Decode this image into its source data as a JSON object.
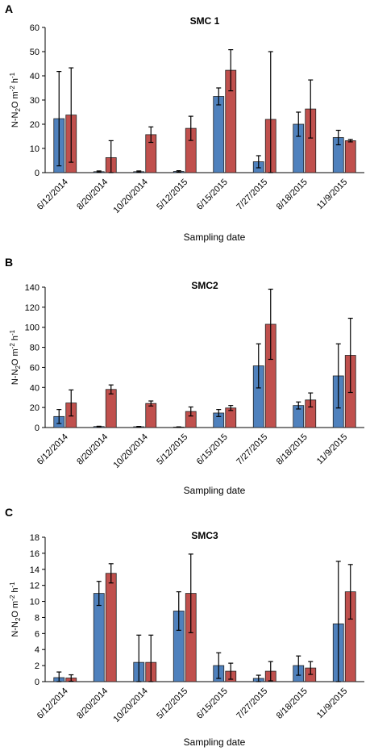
{
  "colors": {
    "series1": "#4F81BD",
    "series2": "#C0504D",
    "gridline": "#BFBFBF",
    "axis": "#000000"
  },
  "chart_data": [
    {
      "panel_letter": "A",
      "type": "bar",
      "title": "SMC 1",
      "ylabel": "N-N2O m-2 h-1",
      "xlabel": "Sampling date",
      "categories": [
        "6/12/2014",
        "8/20/2014",
        "10/20/2014",
        "5/12/2015",
        "6/15/2015",
        "7/27/2015",
        "8/18/2015",
        "11/9/2015"
      ],
      "ylim": [
        0,
        60
      ],
      "yticks": [
        0,
        10,
        20,
        30,
        40,
        50,
        60
      ],
      "grid": false,
      "series": [
        {
          "values": [
            22.3,
            0.4,
            0.4,
            0.5,
            31.5,
            4.5,
            20.0,
            14.5
          ],
          "errors": [
            19.5,
            0.3,
            0.3,
            0.3,
            3.5,
            2.5,
            5.0,
            3.0
          ]
        },
        {
          "values": [
            23.8,
            6.2,
            15.7,
            18.3,
            42.3,
            22.0,
            26.3,
            13.2
          ],
          "errors": [
            19.5,
            7.0,
            3.2,
            5.0,
            8.5,
            28.0,
            12.0,
            0.5
          ]
        }
      ]
    },
    {
      "panel_letter": "B",
      "type": "bar",
      "title": "SMC2",
      "ylabel": "N-N2O m-2 h-1",
      "xlabel": "Sampling date",
      "categories": [
        "6/12/2014",
        "8/20/2014",
        "10/20/2014",
        "5/12/2015",
        "6/15/2015",
        "7/27/2015",
        "8/18/2015",
        "11/9/2015"
      ],
      "ylim": [
        0,
        140
      ],
      "yticks": [
        0,
        20,
        40,
        60,
        80,
        100,
        120,
        140
      ],
      "grid": false,
      "series": [
        {
          "values": [
            11.0,
            1.0,
            0.8,
            0.5,
            14.5,
            61.5,
            22.0,
            51.5
          ],
          "errors": [
            7.0,
            0.3,
            0.3,
            0.2,
            3.5,
            22.0,
            3.5,
            32.0
          ]
        },
        {
          "values": [
            24.5,
            38.0,
            24.0,
            16.0,
            19.5,
            103.0,
            27.5,
            72.0
          ],
          "errors": [
            13.0,
            4.5,
            2.5,
            4.5,
            2.5,
            35.0,
            7.0,
            37.0
          ]
        }
      ]
    },
    {
      "panel_letter": "C",
      "type": "bar",
      "title": "SMC3",
      "ylabel": "N-N2O m-2 h-1",
      "xlabel": "Sampling date",
      "categories": [
        "6/12/2014",
        "8/20/2014",
        "10/20/2014",
        "5/12/2015",
        "6/15/2015",
        "7/27/2015",
        "8/18/2015",
        "11/9/2015"
      ],
      "ylim": [
        0,
        18
      ],
      "yticks": [
        0,
        2,
        4,
        6,
        8,
        10,
        12,
        14,
        16,
        18
      ],
      "grid": false,
      "series": [
        {
          "values": [
            0.5,
            11.0,
            2.4,
            8.8,
            2.0,
            0.4,
            2.0,
            7.2
          ],
          "errors": [
            0.7,
            1.5,
            3.4,
            2.4,
            1.6,
            0.4,
            1.2,
            7.8
          ]
        },
        {
          "values": [
            0.45,
            13.5,
            2.4,
            11.0,
            1.3,
            1.3,
            1.7,
            11.2
          ],
          "errors": [
            0.4,
            1.2,
            3.4,
            4.9,
            1.0,
            1.2,
            0.8,
            3.4
          ]
        }
      ]
    }
  ]
}
